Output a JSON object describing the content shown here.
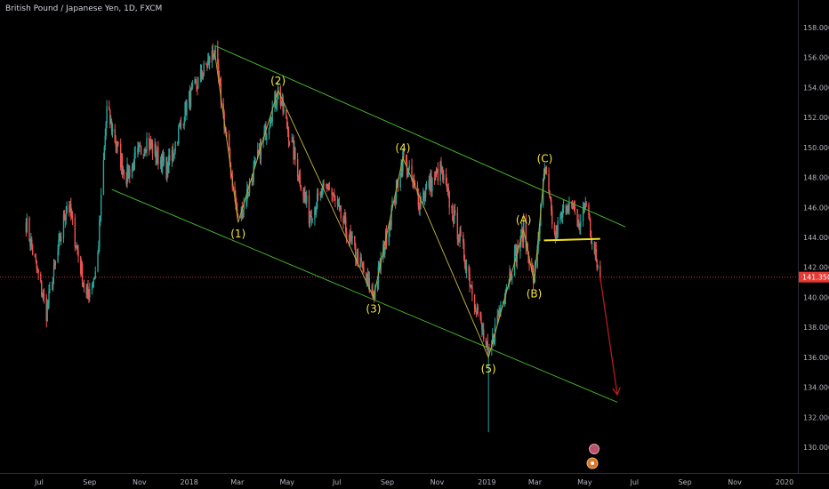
{
  "title": "British Pound / Japanese Yen, 1D, FXCM",
  "colors": {
    "background": "#000000",
    "up": "#26a69a",
    "down": "#ef5350",
    "channel": "#43b02a",
    "wave": "#b7a93a",
    "neckline": "#f5e11b",
    "current_price_line": "#e53935",
    "projection_arrow": "#b71c1c",
    "axis_text": "#b2b5be"
  },
  "chart_data": {
    "type": "line",
    "symbol": "British Pound / Japanese Yen",
    "interval": "1D",
    "source": "FXCM",
    "x_ticks": [
      "Jul",
      "Sep",
      "Nov",
      "2018",
      "Mar",
      "May",
      "Jul",
      "Sep",
      "Nov",
      "2019",
      "Mar",
      "May",
      "Jul",
      "Sep",
      "Nov",
      "2020"
    ],
    "y_ticks": [
      "158.000",
      "156.000",
      "154.000",
      "152.000",
      "150.000",
      "148.000",
      "146.000",
      "144.000",
      "142.000",
      "140.000",
      "138.000",
      "136.000",
      "134.000",
      "132.000",
      "130.000"
    ],
    "ylim": [
      129,
      158.5
    ],
    "current_price": "141.350",
    "price_path_anchors": [
      {
        "date": "2017-06-15",
        "value": 145.0
      },
      {
        "date": "2017-07-10",
        "value": 139.0
      },
      {
        "date": "2017-08-05",
        "value": 146.5
      },
      {
        "date": "2017-08-28",
        "value": 140.0
      },
      {
        "date": "2017-09-10",
        "value": 142.0
      },
      {
        "date": "2017-09-22",
        "value": 152.5
      },
      {
        "date": "2017-10-15",
        "value": 148.0
      },
      {
        "date": "2017-11-10",
        "value": 150.5
      },
      {
        "date": "2017-12-05",
        "value": 148.5
      },
      {
        "date": "2017-12-30",
        "value": 153.0
      },
      {
        "date": "2018-02-01",
        "value": 156.5
      },
      {
        "date": "2018-03-02",
        "value": 145.0
      },
      {
        "date": "2018-04-20",
        "value": 153.8
      },
      {
        "date": "2018-05-28",
        "value": 145.5
      },
      {
        "date": "2018-06-20",
        "value": 147.5
      },
      {
        "date": "2018-08-15",
        "value": 140.0
      },
      {
        "date": "2018-09-20",
        "value": 149.3
      },
      {
        "date": "2018-10-10",
        "value": 146.5
      },
      {
        "date": "2018-11-05",
        "value": 148.5
      },
      {
        "date": "2018-12-01",
        "value": 143.5
      },
      {
        "date": "2019-01-03",
        "value": 136.0
      },
      {
        "date": "2019-01-20",
        "value": 140.0
      },
      {
        "date": "2019-02-15",
        "value": 144.5
      },
      {
        "date": "2019-02-28",
        "value": 141.0
      },
      {
        "date": "2019-03-13",
        "value": 148.6
      },
      {
        "date": "2019-03-25",
        "value": 144.0
      },
      {
        "date": "2019-04-10",
        "value": 146.5
      },
      {
        "date": "2019-04-25",
        "value": 144.8
      },
      {
        "date": "2019-05-03",
        "value": 146.5
      },
      {
        "date": "2019-05-10",
        "value": 143.5
      },
      {
        "date": "2019-05-20",
        "value": 141.35
      }
    ],
    "flash_crash_low": {
      "date": "2019-01-03",
      "value": 131.0
    },
    "wave_path": [
      {
        "label": "",
        "date": "2018-02-01",
        "value": 156.5
      },
      {
        "label": "(1)",
        "date": "2018-03-02",
        "value": 145.0
      },
      {
        "label": "(2)",
        "date": "2018-04-20",
        "value": 153.8
      },
      {
        "label": "(3)",
        "date": "2018-08-15",
        "value": 140.0
      },
      {
        "label": "(4)",
        "date": "2018-09-20",
        "value": 149.3
      },
      {
        "label": "(5)",
        "date": "2019-01-03",
        "value": 136.0
      },
      {
        "label": "(A)",
        "date": "2019-02-15",
        "value": 144.5
      },
      {
        "label": "(B)",
        "date": "2019-02-28",
        "value": 141.0
      },
      {
        "label": "(C)",
        "date": "2019-03-13",
        "value": 148.6
      }
    ],
    "channel_upper": [
      {
        "date": "2018-02-01",
        "value": 156.8
      },
      {
        "date": "2019-06-20",
        "value": 144.7
      }
    ],
    "channel_lower": [
      {
        "date": "2017-09-28",
        "value": 147.2
      },
      {
        "date": "2019-06-10",
        "value": 133.0
      }
    ],
    "neckline": [
      {
        "date": "2019-03-12",
        "value": 143.8
      },
      {
        "date": "2019-05-20",
        "value": 143.9
      }
    ],
    "projection": [
      {
        "date": "2019-05-20",
        "value": 141.35
      },
      {
        "date": "2019-06-10",
        "value": 133.5
      }
    ],
    "grid": false
  }
}
